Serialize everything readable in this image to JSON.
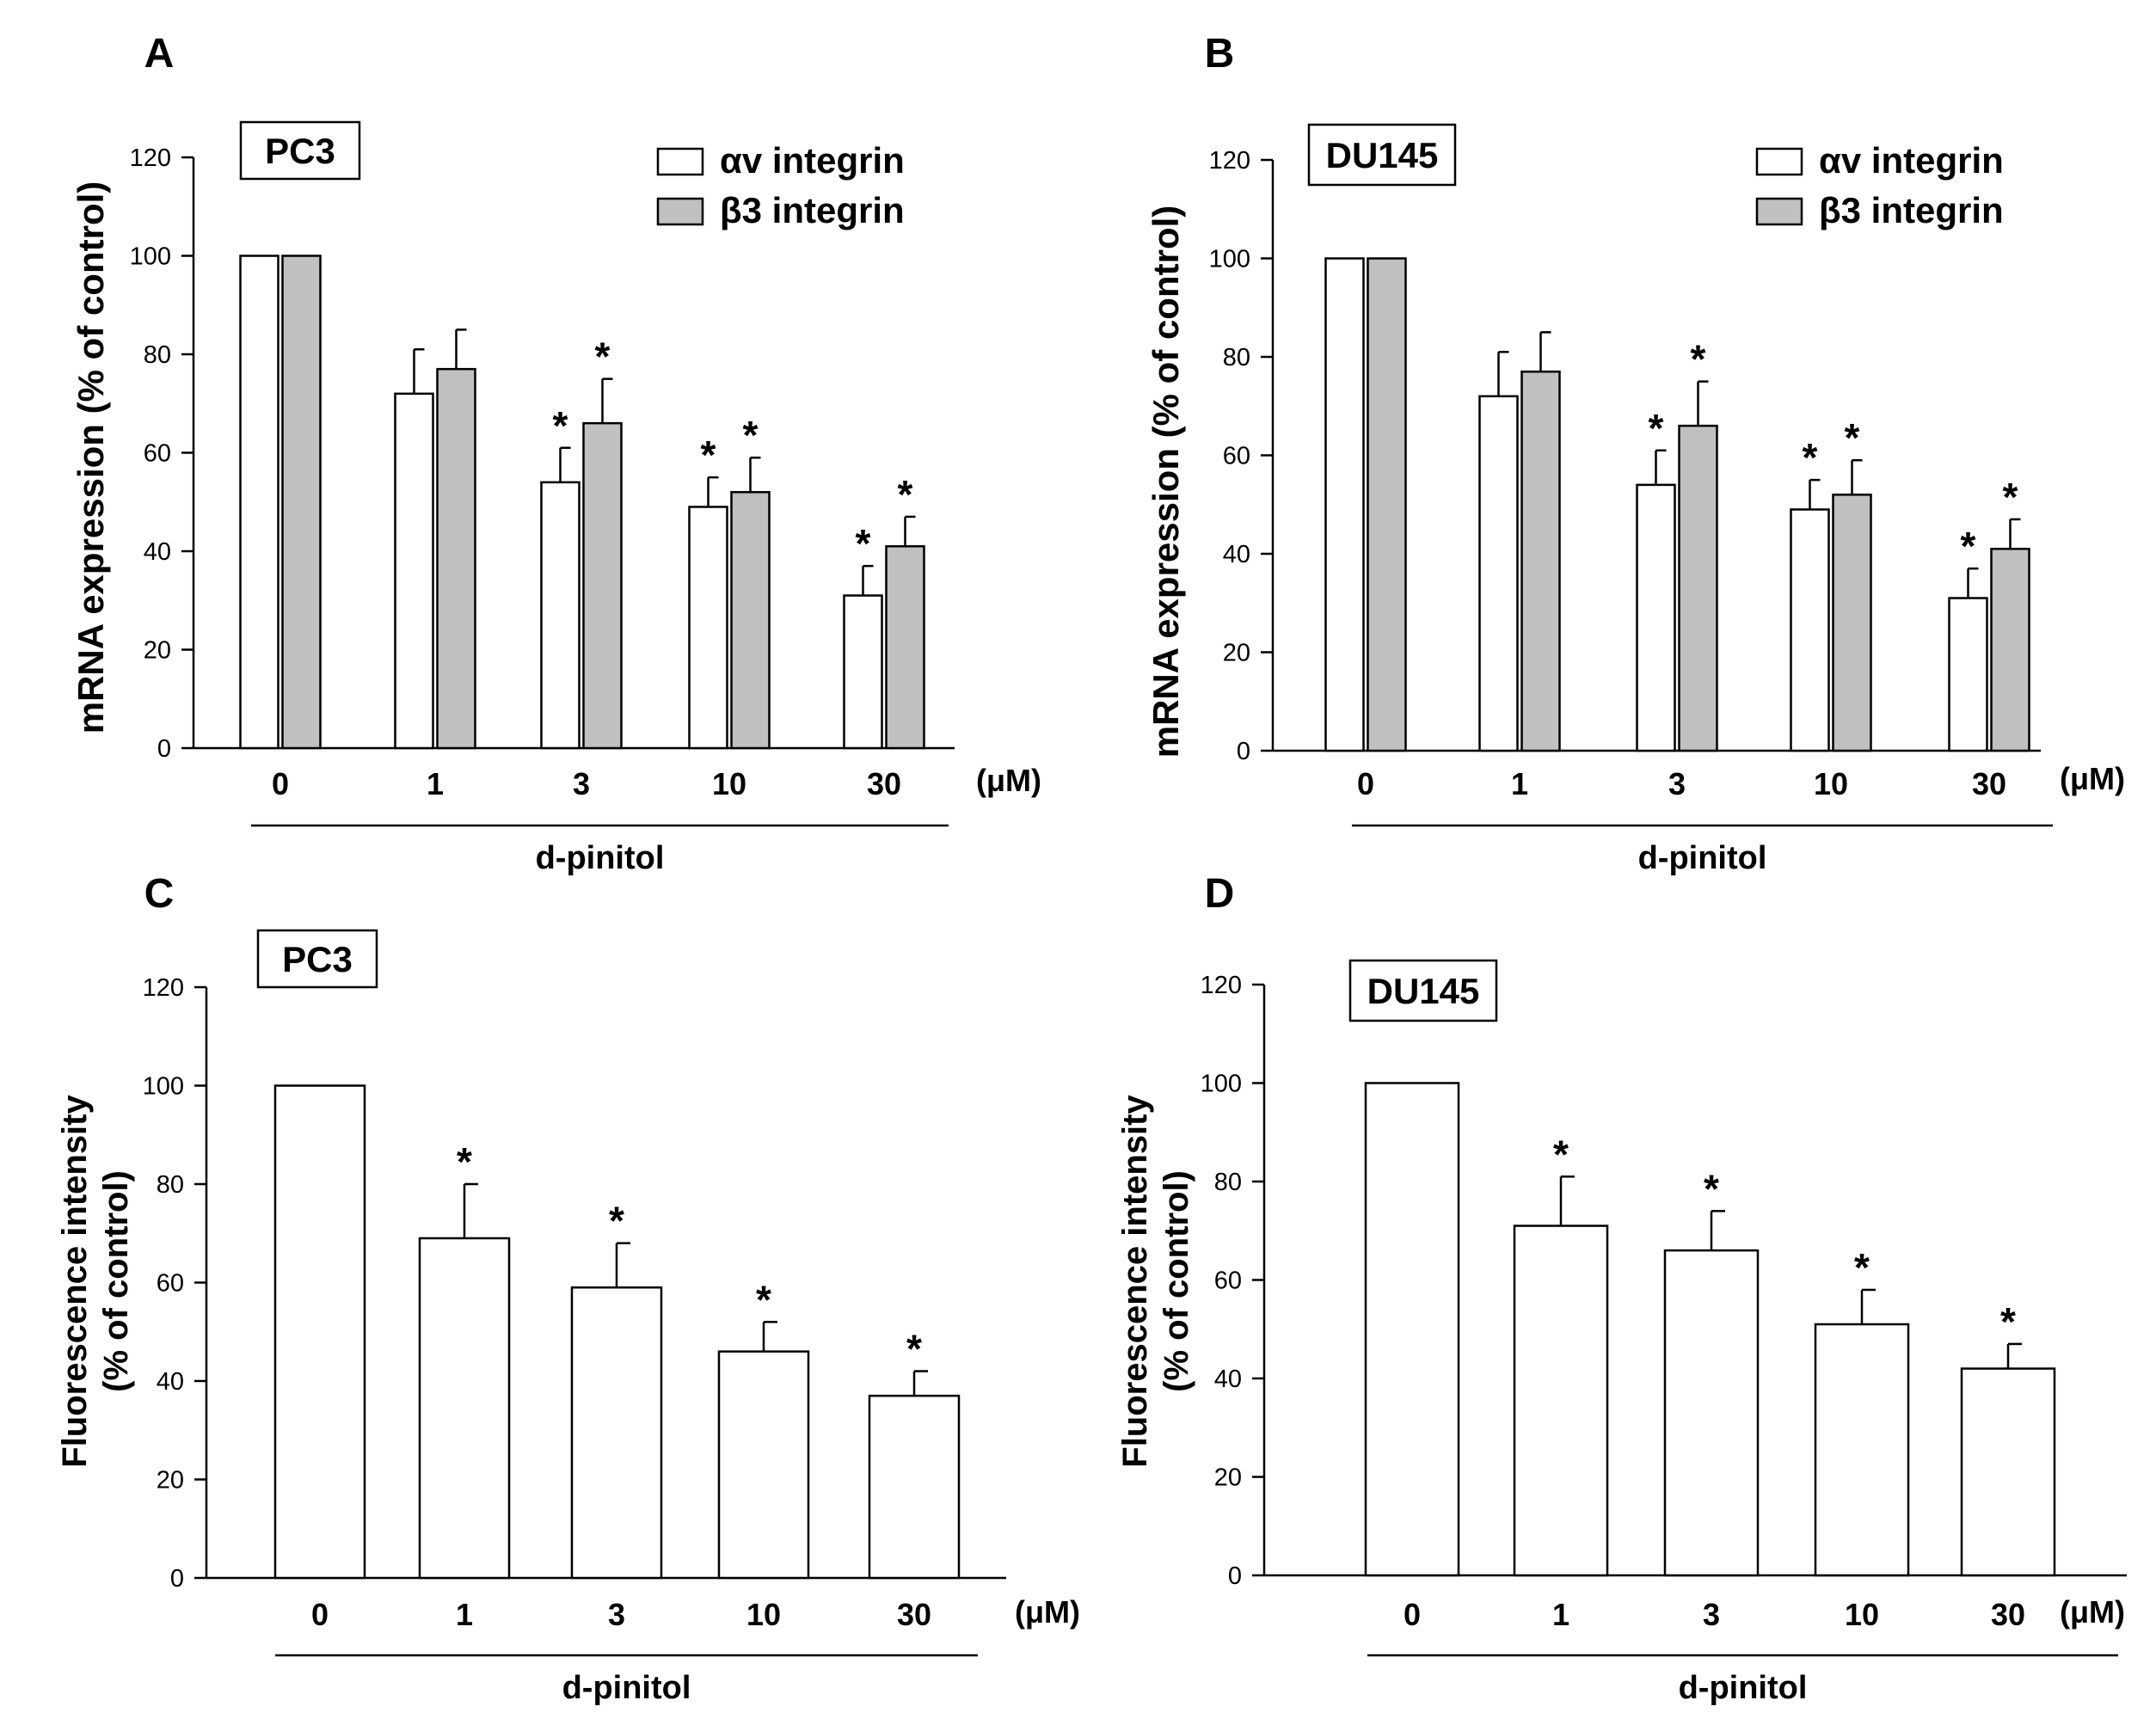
{
  "colors": {
    "axis": "#000000",
    "bar_open": "#ffffff",
    "bar_filled": "#c0c0c0",
    "background": "#ffffff"
  },
  "chart_data": [
    {
      "panel": "A",
      "type": "bar",
      "cell_line": "PC3",
      "ylabel": "mRNA expression (% of control)",
      "xlabel": "d-pinitol",
      "unit": "(μM)",
      "ylim": [
        0,
        120
      ],
      "yticks": [
        "0",
        "20",
        "40",
        "60",
        "80",
        "100",
        "120"
      ],
      "categories": [
        "0",
        "1",
        "3",
        "10",
        "30"
      ],
      "series": [
        {
          "name": "αv integrin",
          "fill": "#ffffff",
          "values": [
            100,
            72,
            54,
            49,
            31
          ],
          "errors": [
            0,
            9,
            7,
            6,
            6
          ],
          "sig": [
            false,
            false,
            true,
            true,
            true
          ]
        },
        {
          "name": "β3 integrin",
          "fill": "#c0c0c0",
          "values": [
            100,
            77,
            66,
            52,
            41
          ],
          "errors": [
            0,
            8,
            9,
            7,
            6
          ],
          "sig": [
            false,
            false,
            true,
            true,
            true
          ]
        }
      ],
      "sig_mark": "*"
    },
    {
      "panel": "B",
      "type": "bar",
      "cell_line": "DU145",
      "ylabel": "mRNA expression (% of control)",
      "xlabel": "d-pinitol",
      "unit": "(μM)",
      "ylim": [
        0,
        120
      ],
      "yticks": [
        "0",
        "20",
        "40",
        "60",
        "80",
        "100",
        "120"
      ],
      "categories": [
        "0",
        "1",
        "3",
        "10",
        "30"
      ],
      "series": [
        {
          "name": "αv integrin",
          "fill": "#ffffff",
          "values": [
            100,
            72,
            54,
            49,
            31
          ],
          "errors": [
            0,
            9,
            7,
            6,
            6
          ],
          "sig": [
            false,
            false,
            true,
            true,
            true
          ]
        },
        {
          "name": "β3 integrin",
          "fill": "#c0c0c0",
          "values": [
            100,
            77,
            66,
            52,
            41
          ],
          "errors": [
            0,
            8,
            9,
            7,
            6
          ],
          "sig": [
            false,
            false,
            true,
            true,
            true
          ]
        }
      ],
      "sig_mark": "*"
    },
    {
      "panel": "C",
      "type": "bar",
      "cell_line": "PC3",
      "ylabel": [
        "Fluorescence intensity",
        "(% of control)"
      ],
      "xlabel": "d-pinitol",
      "unit": "(μM)",
      "ylim": [
        0,
        120
      ],
      "yticks": [
        "0",
        "20",
        "40",
        "60",
        "80",
        "100",
        "120"
      ],
      "categories": [
        "0",
        "1",
        "3",
        "10",
        "30"
      ],
      "series": [
        {
          "name": "Fluorescence intensity",
          "fill": "#ffffff",
          "values": [
            100,
            69,
            59,
            46,
            37
          ],
          "errors": [
            0,
            11,
            9,
            6,
            5
          ],
          "sig": [
            false,
            true,
            true,
            true,
            true
          ]
        }
      ],
      "sig_mark": "*"
    },
    {
      "panel": "D",
      "type": "bar",
      "cell_line": "DU145",
      "ylabel": [
        "Fluorescence intensity",
        "(% of control)"
      ],
      "xlabel": "d-pinitol",
      "unit": "(μM)",
      "ylim": [
        0,
        120
      ],
      "yticks": [
        "0",
        "20",
        "40",
        "60",
        "80",
        "100",
        "120"
      ],
      "categories": [
        "0",
        "1",
        "3",
        "10",
        "30"
      ],
      "series": [
        {
          "name": "Fluorescence intensity",
          "fill": "#ffffff",
          "values": [
            100,
            71,
            66,
            51,
            42
          ],
          "errors": [
            0,
            10,
            8,
            7,
            5
          ],
          "sig": [
            false,
            true,
            true,
            true,
            true
          ]
        }
      ],
      "sig_mark": "*"
    }
  ]
}
